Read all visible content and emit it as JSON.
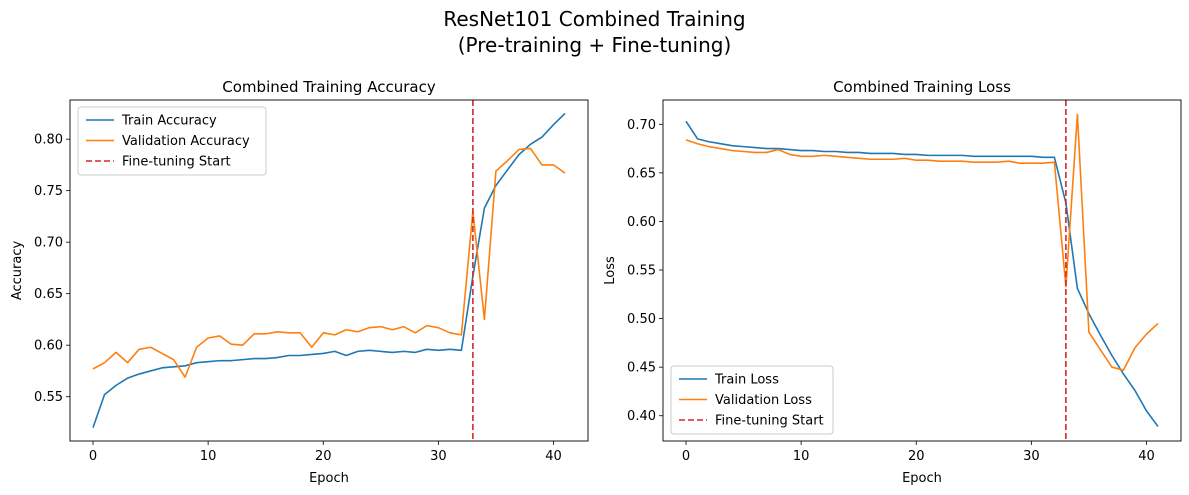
{
  "figure": {
    "title_line1": "ResNet101 Combined Training",
    "title_line2": "(Pre-training + Fine-tuning)"
  },
  "colors": {
    "train": "#1f77b4",
    "validation": "#ff7f0e",
    "finetune": "#d62728"
  },
  "chart_data": [
    {
      "type": "line",
      "title": "Combined Training Accuracy",
      "xlabel": "Epoch",
      "ylabel": "Accuracy",
      "xlim": [
        -2,
        43
      ],
      "ylim": [
        0.507,
        0.838
      ],
      "xticks": [
        0,
        10,
        20,
        30,
        40
      ],
      "yticks": [
        0.55,
        0.6,
        0.65,
        0.7,
        0.75,
        0.8
      ],
      "ytick_labels": [
        "0.55",
        "0.60",
        "0.65",
        "0.70",
        "0.75",
        "0.80"
      ],
      "legend_position": "upper-left",
      "vline": {
        "x": 33,
        "name": "Fine-tuning Start"
      },
      "series": [
        {
          "name": "Train Accuracy",
          "color": "#1f77b4",
          "values": [
            0.52,
            0.552,
            0.561,
            0.568,
            0.572,
            0.575,
            0.578,
            0.579,
            0.58,
            0.583,
            0.584,
            0.585,
            0.585,
            0.586,
            0.587,
            0.587,
            0.588,
            0.59,
            0.59,
            0.591,
            0.592,
            0.594,
            0.59,
            0.594,
            0.595,
            0.594,
            0.593,
            0.594,
            0.593,
            0.596,
            0.595,
            0.596,
            0.595,
            0.667,
            0.733,
            0.755,
            0.77,
            0.785,
            0.795,
            0.802,
            0.814,
            0.825
          ]
        },
        {
          "name": "Validation Accuracy",
          "color": "#ff7f0e",
          "values": [
            0.577,
            0.583,
            0.593,
            0.583,
            0.596,
            0.598,
            0.592,
            0.586,
            0.569,
            0.598,
            0.607,
            0.609,
            0.601,
            0.6,
            0.611,
            0.611,
            0.613,
            0.612,
            0.612,
            0.598,
            0.612,
            0.61,
            0.615,
            0.613,
            0.617,
            0.618,
            0.615,
            0.618,
            0.612,
            0.619,
            0.617,
            0.612,
            0.61,
            0.73,
            0.625,
            0.769,
            0.779,
            0.79,
            0.791,
            0.775,
            0.775,
            0.767
          ]
        }
      ]
    },
    {
      "type": "line",
      "title": "Combined Training Loss",
      "xlabel": "Epoch",
      "ylabel": "Loss",
      "xlim": [
        -2,
        43
      ],
      "ylim": [
        0.374,
        0.725
      ],
      "xticks": [
        0,
        10,
        20,
        30,
        40
      ],
      "yticks": [
        0.4,
        0.45,
        0.5,
        0.55,
        0.6,
        0.65,
        0.7
      ],
      "ytick_labels": [
        "0.40",
        "0.45",
        "0.50",
        "0.55",
        "0.60",
        "0.65",
        "0.70"
      ],
      "legend_position": "lower-left",
      "vline": {
        "x": 33,
        "name": "Fine-tuning Start"
      },
      "series": [
        {
          "name": "Train Loss",
          "color": "#1f77b4",
          "values": [
            0.703,
            0.685,
            0.682,
            0.68,
            0.678,
            0.677,
            0.676,
            0.675,
            0.675,
            0.674,
            0.673,
            0.673,
            0.672,
            0.672,
            0.671,
            0.671,
            0.67,
            0.67,
            0.67,
            0.669,
            0.669,
            0.668,
            0.668,
            0.668,
            0.668,
            0.667,
            0.667,
            0.667,
            0.667,
            0.667,
            0.667,
            0.666,
            0.666,
            0.619,
            0.531,
            0.505,
            0.483,
            0.462,
            0.443,
            0.426,
            0.405,
            0.389
          ]
        },
        {
          "name": "Validation Loss",
          "color": "#ff7f0e",
          "values": [
            0.684,
            0.68,
            0.677,
            0.675,
            0.673,
            0.672,
            0.671,
            0.671,
            0.674,
            0.669,
            0.667,
            0.667,
            0.668,
            0.667,
            0.666,
            0.665,
            0.664,
            0.664,
            0.664,
            0.665,
            0.663,
            0.663,
            0.662,
            0.662,
            0.662,
            0.661,
            0.661,
            0.661,
            0.662,
            0.66,
            0.66,
            0.66,
            0.661,
            0.533,
            0.71,
            0.486,
            0.468,
            0.45,
            0.447,
            0.47,
            0.484,
            0.495
          ]
        }
      ]
    }
  ]
}
